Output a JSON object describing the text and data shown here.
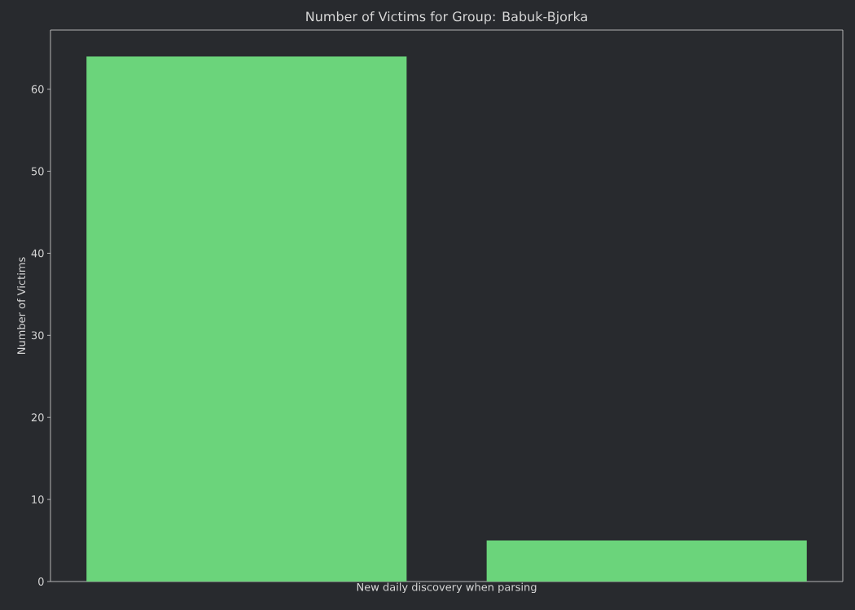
{
  "chart_data": {
    "type": "bar",
    "title": "Number of Victims for Group: Babuk-Bjorka",
    "xlabel": "New daily discovery when parsing",
    "ylabel": "Number of Victims",
    "categories": [
      null,
      null
    ],
    "values": [
      64,
      5
    ],
    "color": "#6bd47b",
    "ylim": [
      0,
      67.2
    ],
    "yticks": [
      0,
      10,
      20,
      30,
      40,
      50,
      60
    ],
    "tick_labels": "y"
  }
}
